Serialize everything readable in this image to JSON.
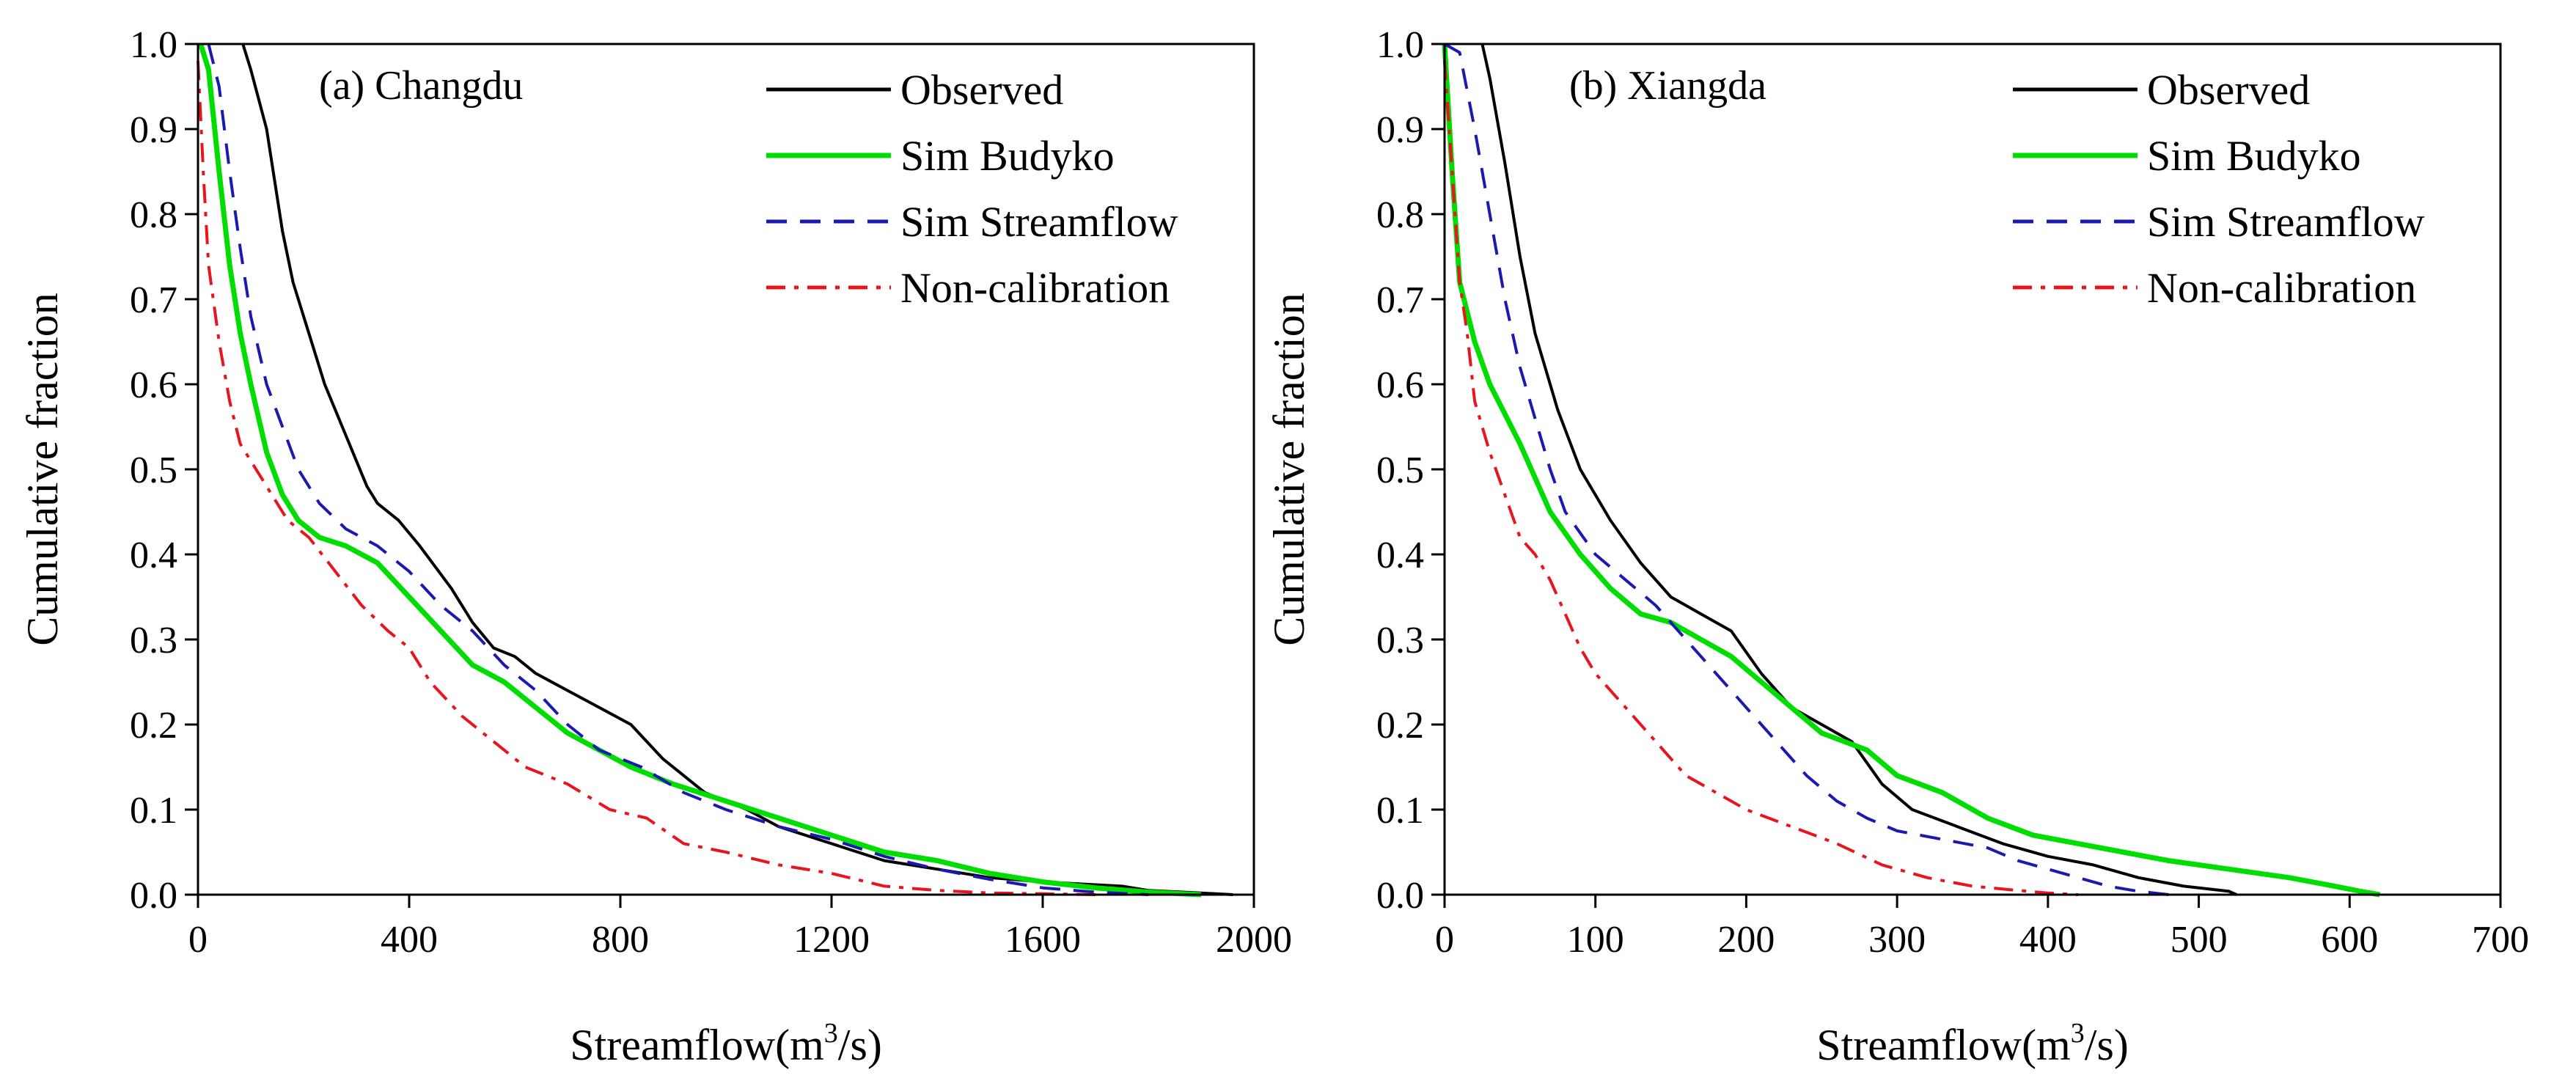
{
  "chart_data": [
    {
      "type": "line",
      "title": "(a) Changdu",
      "xlabel_main": "Streamflow(m",
      "xlabel_sup": "3",
      "xlabel_tail": "/s)",
      "ylabel": "Cumulative fraction",
      "xlim": [
        0,
        2000
      ],
      "ylim": [
        0,
        1.0
      ],
      "xticks": [
        0,
        400,
        800,
        1200,
        1600,
        2000
      ],
      "xtick_labels": [
        "0",
        "400",
        "800",
        "1200",
        "1600",
        "2000"
      ],
      "yticks": [
        0,
        0.1,
        0.2,
        0.3,
        0.4,
        0.5,
        0.6,
        0.7,
        0.8,
        0.9,
        1.0
      ],
      "ytick_labels": [
        "0.0",
        "0.1",
        "0.2",
        "0.3",
        "0.4",
        "0.5",
        "0.6",
        "0.7",
        "0.8",
        "0.9",
        "1.0"
      ],
      "legend_position": "top-right",
      "series": [
        {
          "name": "Observed",
          "color": "#000000",
          "style": "solid",
          "x": [
            85,
            100,
            130,
            160,
            180,
            210,
            240,
            280,
            320,
            340,
            380,
            420,
            480,
            520,
            560,
            600,
            640,
            700,
            760,
            820,
            880,
            960,
            1040,
            1100,
            1200,
            1300,
            1400,
            1500,
            1600,
            1750,
            1800,
            1900,
            1960
          ],
          "y": [
            1.0,
            0.97,
            0.9,
            0.78,
            0.72,
            0.66,
            0.6,
            0.54,
            0.48,
            0.46,
            0.44,
            0.41,
            0.36,
            0.32,
            0.29,
            0.28,
            0.26,
            0.24,
            0.22,
            0.2,
            0.16,
            0.12,
            0.1,
            0.08,
            0.06,
            0.04,
            0.03,
            0.02,
            0.015,
            0.01,
            0.005,
            0.002,
            0.0
          ]
        },
        {
          "name": "Sim Budyko",
          "color": "#00DD00",
          "style": "solid",
          "x": [
            5,
            20,
            40,
            60,
            80,
            100,
            130,
            160,
            190,
            230,
            280,
            340,
            400,
            460,
            520,
            580,
            640,
            700,
            760,
            820,
            900,
            1000,
            1100,
            1200,
            1300,
            1400,
            1500,
            1600,
            1700,
            1800,
            1900
          ],
          "y": [
            1.0,
            0.97,
            0.85,
            0.74,
            0.66,
            0.6,
            0.52,
            0.47,
            0.44,
            0.42,
            0.41,
            0.39,
            0.35,
            0.31,
            0.27,
            0.25,
            0.22,
            0.19,
            0.17,
            0.15,
            0.13,
            0.11,
            0.09,
            0.07,
            0.05,
            0.04,
            0.025,
            0.015,
            0.008,
            0.003,
            0.0
          ]
        },
        {
          "name": "Sim Streamflow",
          "color": "#1A1AB0",
          "style": "dashed",
          "x": [
            20,
            40,
            60,
            80,
            100,
            130,
            160,
            190,
            230,
            280,
            340,
            400,
            460,
            520,
            580,
            640,
            700,
            760,
            840,
            920,
            1000,
            1100,
            1200,
            1300,
            1400,
            1500,
            1600,
            1700,
            1800
          ],
          "y": [
            1.0,
            0.95,
            0.85,
            0.76,
            0.68,
            0.6,
            0.55,
            0.5,
            0.46,
            0.43,
            0.41,
            0.38,
            0.34,
            0.31,
            0.27,
            0.24,
            0.2,
            0.17,
            0.15,
            0.12,
            0.1,
            0.08,
            0.065,
            0.045,
            0.03,
            0.018,
            0.008,
            0.003,
            0.0
          ]
        },
        {
          "name": "Non-calibration",
          "color": "#E8141E",
          "style": "dashdot",
          "x": [
            0,
            10,
            20,
            40,
            60,
            80,
            110,
            140,
            170,
            210,
            260,
            310,
            360,
            400,
            440,
            500,
            560,
            620,
            700,
            780,
            850,
            920,
            1000,
            1100,
            1200,
            1300,
            1400,
            1500,
            1600,
            1700
          ],
          "y": [
            0.98,
            0.85,
            0.74,
            0.65,
            0.58,
            0.53,
            0.5,
            0.47,
            0.44,
            0.42,
            0.38,
            0.34,
            0.31,
            0.29,
            0.25,
            0.21,
            0.18,
            0.15,
            0.13,
            0.1,
            0.09,
            0.06,
            0.05,
            0.035,
            0.025,
            0.01,
            0.005,
            0.002,
            0.001,
            0.0
          ]
        }
      ]
    },
    {
      "type": "line",
      "title": "(b) Xiangda",
      "xlabel_main": "Streamflow(m",
      "xlabel_sup": "3",
      "xlabel_tail": "/s)",
      "ylabel": "Cumulative fraction",
      "xlim": [
        0,
        700
      ],
      "ylim": [
        0,
        1.0
      ],
      "xticks": [
        0,
        100,
        200,
        300,
        400,
        500,
        600,
        700
      ],
      "xtick_labels": [
        "0",
        "100",
        "200",
        "300",
        "400",
        "500",
        "600",
        "700"
      ],
      "yticks": [
        0,
        0.1,
        0.2,
        0.3,
        0.4,
        0.5,
        0.6,
        0.7,
        0.8,
        0.9,
        1.0
      ],
      "ytick_labels": [
        "0.0",
        "0.1",
        "0.2",
        "0.3",
        "0.4",
        "0.5",
        "0.6",
        "0.7",
        "0.8",
        "0.9",
        "1.0"
      ],
      "legend_position": "top-right",
      "series": [
        {
          "name": "Observed",
          "color": "#000000",
          "style": "solid",
          "x": [
            25,
            30,
            40,
            50,
            60,
            75,
            90,
            110,
            130,
            150,
            170,
            190,
            210,
            230,
            250,
            270,
            290,
            310,
            340,
            370,
            400,
            430,
            460,
            490,
            520,
            525
          ],
          "y": [
            1.0,
            0.96,
            0.86,
            0.75,
            0.66,
            0.57,
            0.5,
            0.44,
            0.39,
            0.35,
            0.33,
            0.31,
            0.26,
            0.22,
            0.2,
            0.18,
            0.13,
            0.1,
            0.08,
            0.06,
            0.045,
            0.035,
            0.02,
            0.01,
            0.004,
            0.0
          ]
        },
        {
          "name": "Sim Budyko",
          "color": "#00DD00",
          "style": "solid",
          "x": [
            0,
            5,
            10,
            20,
            30,
            50,
            70,
            90,
            110,
            130,
            150,
            170,
            190,
            210,
            230,
            250,
            280,
            300,
            330,
            360,
            390,
            420,
            450,
            480,
            520,
            560,
            590,
            610,
            620
          ],
          "y": [
            1.0,
            0.85,
            0.72,
            0.65,
            0.6,
            0.53,
            0.45,
            0.4,
            0.36,
            0.33,
            0.32,
            0.3,
            0.28,
            0.25,
            0.22,
            0.19,
            0.17,
            0.14,
            0.12,
            0.09,
            0.07,
            0.06,
            0.05,
            0.04,
            0.03,
            0.02,
            0.01,
            0.003,
            0.0
          ]
        },
        {
          "name": "Sim Streamflow",
          "color": "#1A1AB0",
          "style": "dashed",
          "x": [
            0,
            10,
            20,
            30,
            40,
            50,
            60,
            70,
            80,
            100,
            120,
            140,
            160,
            180,
            200,
            220,
            240,
            260,
            280,
            300,
            330,
            360,
            380,
            400,
            420,
            440,
            460,
            480
          ],
          "y": [
            1.0,
            0.99,
            0.9,
            0.8,
            0.7,
            0.62,
            0.56,
            0.5,
            0.45,
            0.4,
            0.37,
            0.34,
            0.3,
            0.26,
            0.22,
            0.18,
            0.14,
            0.11,
            0.09,
            0.075,
            0.065,
            0.055,
            0.04,
            0.03,
            0.02,
            0.01,
            0.004,
            0.0
          ]
        },
        {
          "name": "Non-calibration",
          "color": "#E8141E",
          "style": "dashdot",
          "x": [
            0,
            5,
            10,
            15,
            20,
            30,
            40,
            50,
            60,
            70,
            80,
            90,
            100,
            120,
            140,
            160,
            180,
            200,
            230,
            260,
            290,
            320,
            350,
            380,
            400,
            420
          ],
          "y": [
            0.98,
            0.85,
            0.72,
            0.66,
            0.58,
            0.52,
            0.47,
            0.42,
            0.4,
            0.37,
            0.33,
            0.29,
            0.26,
            0.22,
            0.18,
            0.14,
            0.12,
            0.1,
            0.08,
            0.06,
            0.035,
            0.02,
            0.01,
            0.005,
            0.002,
            0.0
          ]
        }
      ]
    }
  ]
}
